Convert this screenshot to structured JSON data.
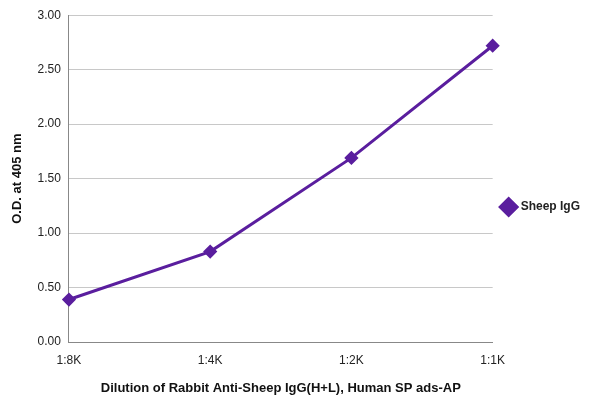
{
  "chart_data": {
    "type": "line",
    "x_label": "Dilution of Rabbit Anti-Sheep IgG(H+L), Human SP ads-AP",
    "y_label": "O.D. at 405 nm",
    "categories": [
      "1:8K",
      "1:4K",
      "1:2K",
      "1:1K"
    ],
    "series": [
      {
        "name": "Sheep IgG",
        "color": "#5a1e9e",
        "marker": "diamond",
        "values": [
          0.39,
          0.83,
          1.69,
          2.72
        ]
      }
    ],
    "ylim": [
      0,
      3
    ],
    "yticks": [
      {
        "value": 0,
        "label": "0.00"
      },
      {
        "value": 0.5,
        "label": "0.50"
      },
      {
        "value": 1,
        "label": "1.00"
      },
      {
        "value": 1.5,
        "label": "1.50"
      },
      {
        "value": 2,
        "label": "2.00"
      },
      {
        "value": 2.5,
        "label": "2.50"
      },
      {
        "value": 3,
        "label": "3.00"
      }
    ],
    "grid": true,
    "legend": "right"
  }
}
